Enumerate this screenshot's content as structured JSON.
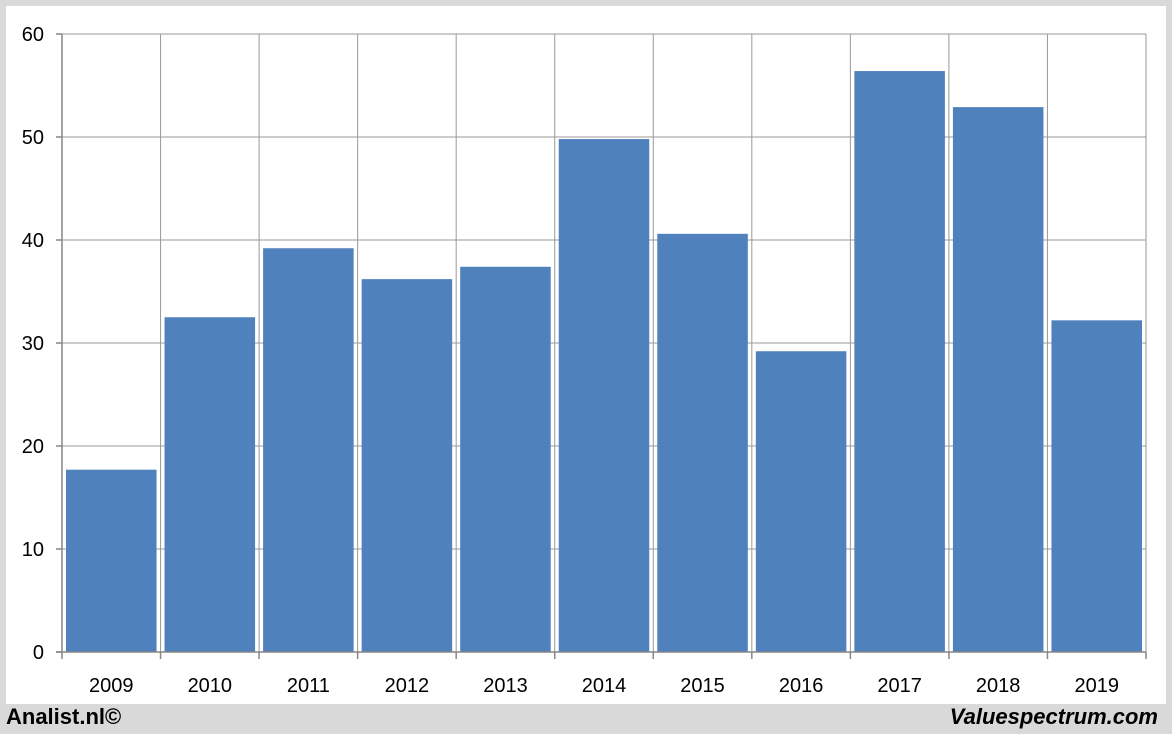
{
  "chart_data": {
    "type": "bar",
    "categories": [
      "2009",
      "2010",
      "2011",
      "2012",
      "2013",
      "2014",
      "2015",
      "2016",
      "2017",
      "2018",
      "2019"
    ],
    "values": [
      17.7,
      32.5,
      39.2,
      36.2,
      37.4,
      49.8,
      40.6,
      29.2,
      56.4,
      52.9,
      32.2
    ],
    "ylim": [
      0,
      60
    ],
    "yticks": [
      0,
      10,
      20,
      30,
      40,
      50,
      60
    ],
    "grid": true,
    "bar_color": "#4f81bd",
    "title": "",
    "xlabel": "",
    "ylabel": ""
  },
  "footer": {
    "left": "Analist.nl©",
    "right": "Valuespectrum.com"
  }
}
